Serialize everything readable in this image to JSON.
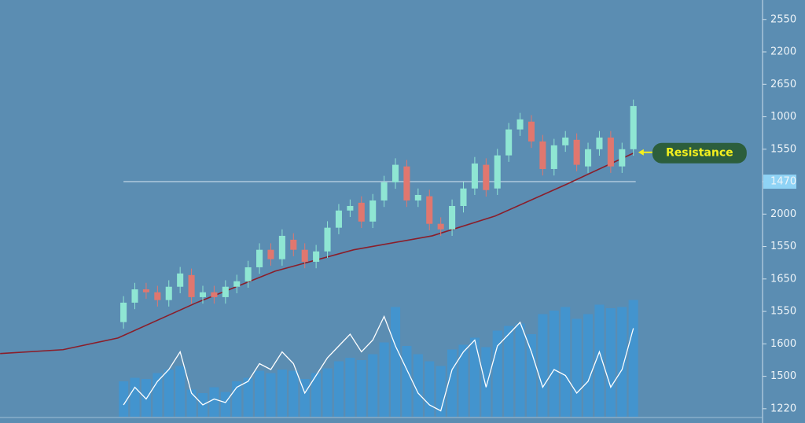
{
  "chart_data": {
    "type": "candlestick",
    "xlim": [
      -10.9,
      56.4
    ],
    "ylim": [
      -0.44,
      12.6
    ],
    "yticks": [
      {
        "value": 0,
        "label": "1220"
      },
      {
        "value": 1,
        "label": "1500"
      },
      {
        "value": 2,
        "label": "1600"
      },
      {
        "value": 3,
        "label": "1550"
      },
      {
        "value": 4,
        "label": "1650"
      },
      {
        "value": 5,
        "label": "1550"
      },
      {
        "value": 6,
        "label": "2000"
      },
      {
        "value": 7,
        "label": "1470"
      },
      {
        "value": 8,
        "label": "1550"
      },
      {
        "value": 9,
        "label": "1000"
      },
      {
        "value": 10,
        "label": "2650"
      },
      {
        "value": 11,
        "label": "2200"
      },
      {
        "value": 12,
        "label": "2550"
      }
    ],
    "hline": 7,
    "up_color": "#8fe6d3",
    "down_color": "#e0776f",
    "candles": [
      [
        2.67,
        3.47,
        2.47,
        3.27
      ],
      [
        3.27,
        3.88,
        3.07,
        3.68
      ],
      [
        3.68,
        3.88,
        3.39,
        3.59
      ],
      [
        3.59,
        3.79,
        3.15,
        3.35
      ],
      [
        3.35,
        3.96,
        3.15,
        3.76
      ],
      [
        3.76,
        4.37,
        3.56,
        4.17
      ],
      [
        4.12,
        4.32,
        3.24,
        3.44
      ],
      [
        3.44,
        3.79,
        3.24,
        3.59
      ],
      [
        3.59,
        3.79,
        3.24,
        3.44
      ],
      [
        3.44,
        3.96,
        3.24,
        3.76
      ],
      [
        3.76,
        4.13,
        3.56,
        3.93
      ],
      [
        3.93,
        4.56,
        3.73,
        4.36
      ],
      [
        4.36,
        5.1,
        4.16,
        4.9
      ],
      [
        4.9,
        5.1,
        4.41,
        4.61
      ],
      [
        4.61,
        5.53,
        4.41,
        5.33
      ],
      [
        5.21,
        5.41,
        4.7,
        4.9
      ],
      [
        4.9,
        5.1,
        4.33,
        4.53
      ],
      [
        4.53,
        5.05,
        4.33,
        4.85
      ],
      [
        4.85,
        5.78,
        4.65,
        5.58
      ],
      [
        5.58,
        6.31,
        5.38,
        6.11
      ],
      [
        6.11,
        6.45,
        5.91,
        6.25
      ],
      [
        6.35,
        6.55,
        5.57,
        5.77
      ],
      [
        5.77,
        6.62,
        5.57,
        6.42
      ],
      [
        6.42,
        7.18,
        6.22,
        6.98
      ],
      [
        6.98,
        7.72,
        6.78,
        7.52
      ],
      [
        7.47,
        7.67,
        6.22,
        6.42
      ],
      [
        6.42,
        6.79,
        6.22,
        6.59
      ],
      [
        6.55,
        6.75,
        5.5,
        5.7
      ],
      [
        5.7,
        5.9,
        5.33,
        5.53
      ],
      [
        5.53,
        6.45,
        5.33,
        6.25
      ],
      [
        6.25,
        6.99,
        6.05,
        6.79
      ],
      [
        6.79,
        7.76,
        6.59,
        7.56
      ],
      [
        7.52,
        7.72,
        6.54,
        6.74
      ],
      [
        6.79,
        8.01,
        6.59,
        7.81
      ],
      [
        7.81,
        8.81,
        7.61,
        8.61
      ],
      [
        8.61,
        9.12,
        8.41,
        8.92
      ],
      [
        8.85,
        9.05,
        8.04,
        8.24
      ],
      [
        8.24,
        8.44,
        7.19,
        7.39
      ],
      [
        7.39,
        8.32,
        7.19,
        8.12
      ],
      [
        8.12,
        8.56,
        7.92,
        8.36
      ],
      [
        8.29,
        8.49,
        7.32,
        7.52
      ],
      [
        7.47,
        8.2,
        7.27,
        8.0
      ],
      [
        8.0,
        8.56,
        7.8,
        8.36
      ],
      [
        8.36,
        8.56,
        7.27,
        7.47
      ],
      [
        7.47,
        8.2,
        7.27,
        8.0
      ],
      [
        8.0,
        9.53,
        7.8,
        9.33
      ]
    ],
    "ma": {
      "color": "#8a1e2a",
      "x": [
        -10.89,
        -5.34,
        -0.49,
        6.45,
        13.38,
        20.32,
        27.25,
        32.8,
        39.04,
        45.01
      ],
      "values": [
        1.7,
        1.82,
        2.18,
        3.27,
        4.24,
        4.9,
        5.33,
        5.94,
        6.91,
        7.88
      ]
    },
    "y2lim": [
      0,
      100
    ],
    "volume": {
      "color": "#3f95d2",
      "values": [
        30,
        33,
        32,
        37,
        40,
        43,
        23,
        20,
        25,
        21,
        30,
        33,
        39,
        37,
        40,
        39,
        32,
        37,
        41,
        47,
        50,
        48,
        53,
        63,
        93,
        60,
        53,
        47,
        43,
        57,
        61,
        67,
        59,
        73,
        77,
        79,
        70,
        87,
        90,
        93,
        83,
        87,
        95,
        92,
        93,
        99
      ]
    },
    "oscillator": {
      "color": "#ffffff",
      "values": [
        10,
        25,
        15,
        30,
        40,
        55,
        20,
        10,
        15,
        12,
        25,
        30,
        45,
        40,
        55,
        45,
        20,
        35,
        50,
        60,
        70,
        55,
        65,
        85,
        60,
        40,
        20,
        10,
        5,
        40,
        55,
        65,
        25,
        60,
        70,
        80,
        55,
        25,
        40,
        35,
        20,
        30,
        55,
        25,
        40,
        75
      ]
    },
    "annotation": "Resistance"
  }
}
